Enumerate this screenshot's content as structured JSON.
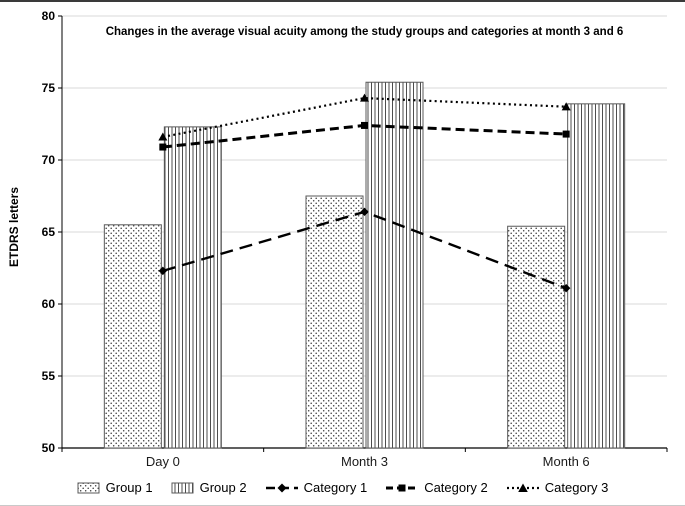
{
  "chart_data": {
    "type": "combo-bar-line",
    "title": "Changes in the average visual acuity among the study groups and categories at month 3 and 6",
    "ylabel": "ETDRS letters",
    "ylim": [
      50,
      80
    ],
    "ytick_step": 5,
    "grid": true,
    "legend_position": "bottom",
    "categories": [
      "Day 0",
      "Month 3",
      "Month 6"
    ],
    "bar_series": [
      {
        "name": "Group 1",
        "values": [
          65.5,
          67.5,
          65.4
        ],
        "pattern": "dots"
      },
      {
        "name": "Group 2",
        "values": [
          72.3,
          75.4,
          73.9
        ],
        "pattern": "vlines"
      }
    ],
    "line_series": [
      {
        "name": "Category 1",
        "values": [
          62.3,
          66.4,
          61.1
        ],
        "marker": "diamond",
        "dash": "long-dash"
      },
      {
        "name": "Category 2",
        "values": [
          70.9,
          72.4,
          71.8
        ],
        "marker": "square",
        "dash": "dash"
      },
      {
        "name": "Category 3",
        "values": [
          71.6,
          74.3,
          73.7
        ],
        "marker": "triangle",
        "dash": "dot"
      }
    ],
    "colors": {
      "line": "#000000",
      "grid": "#d9d9d9",
      "axis": "#000000",
      "bar_outline": "#595959"
    }
  }
}
